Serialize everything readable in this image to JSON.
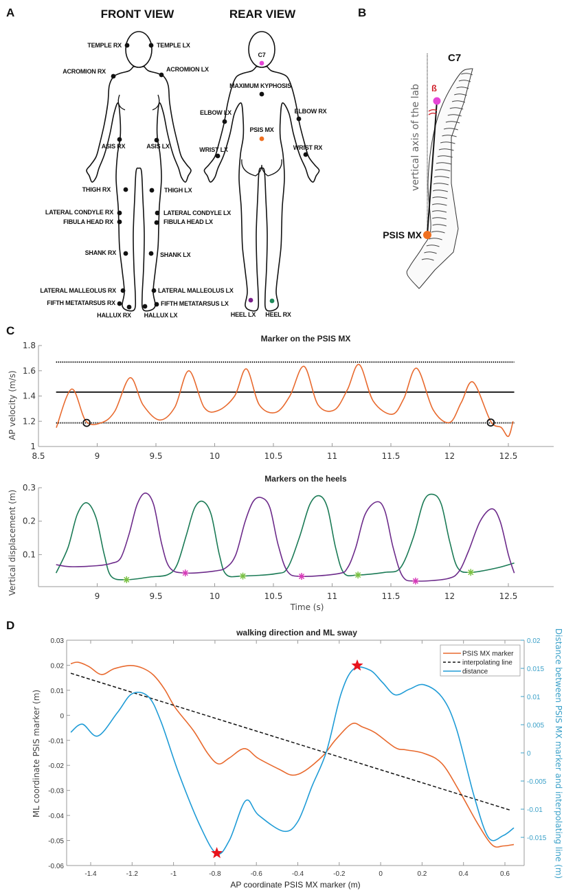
{
  "panel_labels": {
    "a": "A",
    "b": "B",
    "c": "C",
    "d": "D"
  },
  "front_view": {
    "title": "FRONT VIEW",
    "markers": [
      "TEMPLE RX",
      "TEMPLE LX",
      "ACROMION RX",
      "ACROMION LX",
      "ASIS RX",
      "ASIS LX",
      "THIGH RX",
      "THIGH LX",
      "LATERAL CONDYLE RX",
      "LATERAL CONDYLE LX",
      "FIBULA HEAD RX",
      "FIBULA HEAD LX",
      "SHANK RX",
      "SHANK LX",
      "LATERAL MALLEOLUS RX",
      "LATERAL MALLEOLUS LX",
      "FIFTH METATARSUS RX",
      "FIFTH METATARSUS LX",
      "HALLUX RX",
      "HALLUX LX"
    ]
  },
  "rear_view": {
    "title": "REAR VIEW",
    "markers": [
      "C7",
      "MAXIMUM KYPHOSIS",
      "ELBOW LX",
      "ELBOW RX",
      "PSIS MX",
      "WRIST LX",
      "WRIST RX",
      "HEEL LX",
      "HEEL RX"
    ],
    "marker_colors": {
      "C7": "#e646d6",
      "PSIS MX": "#f07020",
      "HEEL LX": "#7a1f8a",
      "HEEL RX": "#1f8a5a",
      "default": "#111111"
    }
  },
  "spine": {
    "top_label": "C7",
    "angle_label": "ß",
    "axis_label": "vertical axis of the lab",
    "bottom_label": "PSIS MX",
    "colors": {
      "c7": "#e646d6",
      "psis": "#f07020",
      "angle": "#d0202a"
    }
  },
  "chart_data": [
    {
      "type": "line",
      "title": "Marker on the PSIS MX",
      "xlabel": "",
      "ylabel": "AP velocity (m/s)",
      "xlim": [
        8.5,
        12.88
      ],
      "ylim": [
        1,
        1.8
      ],
      "xticks": [
        "8.5",
        "9",
        "9.5",
        "10",
        "10.5",
        "11",
        "11.5",
        "12",
        "12.5"
      ],
      "yticks": [
        "1",
        "1.2",
        "1.4",
        "1.6",
        "1.8"
      ],
      "grid": false,
      "series": [
        {
          "color": "#e8692d",
          "points": [
            [
              8.652,
              1.149
            ],
            [
              8.783,
              1.455
            ],
            [
              8.905,
              1.2
            ],
            [
              9.04,
              1.19
            ],
            [
              9.15,
              1.28
            ],
            [
              9.28,
              1.545
            ],
            [
              9.39,
              1.33
            ],
            [
              9.53,
              1.21
            ],
            [
              9.66,
              1.31
            ],
            [
              9.78,
              1.6
            ],
            [
              9.91,
              1.31
            ],
            [
              10.03,
              1.285
            ],
            [
              10.17,
              1.4
            ],
            [
              10.27,
              1.615
            ],
            [
              10.38,
              1.33
            ],
            [
              10.52,
              1.27
            ],
            [
              10.64,
              1.4
            ],
            [
              10.76,
              1.635
            ],
            [
              10.88,
              1.33
            ],
            [
              11.02,
              1.29
            ],
            [
              11.13,
              1.45
            ],
            [
              11.23,
              1.65
            ],
            [
              11.35,
              1.36
            ],
            [
              11.51,
              1.255
            ],
            [
              11.61,
              1.38
            ],
            [
              11.72,
              1.62
            ],
            [
              11.86,
              1.29
            ],
            [
              12.0,
              1.19
            ],
            [
              12.1,
              1.35
            ],
            [
              12.2,
              1.51
            ],
            [
              12.35,
              1.2
            ],
            [
              12.44,
              1.15
            ],
            [
              12.5,
              1.08
            ],
            [
              12.54,
              1.2
            ]
          ]
        }
      ],
      "reference_lines": [
        {
          "y": 1.669,
          "style": "dotted",
          "color": "#111111"
        },
        {
          "y": 1.431,
          "style": "solid",
          "color": "#111111"
        },
        {
          "y": 1.187,
          "style": "dotted",
          "color": "#111111"
        }
      ],
      "reference_x_range": [
        8.65,
        12.55
      ],
      "circle_markers": [
        [
          8.91,
          1.187
        ],
        [
          12.35,
          1.19
        ]
      ]
    },
    {
      "type": "line",
      "title": "Markers on the heels",
      "xlabel": "Time (s)",
      "ylabel": "Vertical displacement (m)",
      "xlim": [
        8.5,
        12.88
      ],
      "ylim": [
        0.006,
        0.3
      ],
      "xticks": [
        "9",
        "9.5",
        "10",
        "10.5",
        "11",
        "11.5",
        "12",
        "12.5"
      ],
      "yticks": [
        "0.1",
        "0.2",
        "0.3"
      ],
      "grid": false,
      "series": [
        {
          "color": "#1a7a55",
          "points": [
            [
              8.65,
              0.045
            ],
            [
              8.75,
              0.12
            ],
            [
              8.83,
              0.22
            ],
            [
              8.91,
              0.255
            ],
            [
              8.99,
              0.21
            ],
            [
              9.06,
              0.1
            ],
            [
              9.12,
              0.035
            ],
            [
              9.25,
              0.025
            ],
            [
              9.45,
              0.033
            ],
            [
              9.6,
              0.04
            ],
            [
              9.68,
              0.07
            ],
            [
              9.76,
              0.16
            ],
            [
              9.83,
              0.24
            ],
            [
              9.9,
              0.259
            ],
            [
              9.97,
              0.22
            ],
            [
              10.04,
              0.1
            ],
            [
              10.1,
              0.04
            ],
            [
              10.24,
              0.036
            ],
            [
              10.52,
              0.043
            ],
            [
              10.62,
              0.06
            ],
            [
              10.72,
              0.15
            ],
            [
              10.81,
              0.25
            ],
            [
              10.89,
              0.276
            ],
            [
              10.96,
              0.24
            ],
            [
              11.03,
              0.12
            ],
            [
              11.1,
              0.045
            ],
            [
              11.22,
              0.039
            ],
            [
              11.45,
              0.047
            ],
            [
              11.58,
              0.06
            ],
            [
              11.69,
              0.15
            ],
            [
              11.78,
              0.26
            ],
            [
              11.86,
              0.28
            ],
            [
              11.93,
              0.25
            ],
            [
              12.0,
              0.14
            ],
            [
              12.07,
              0.06
            ],
            [
              12.18,
              0.047
            ],
            [
              12.4,
              0.06
            ],
            [
              12.55,
              0.075
            ]
          ]
        },
        {
          "color": "#6c2a8a",
          "points": [
            [
              8.65,
              0.07
            ],
            [
              8.77,
              0.064
            ],
            [
              9.0,
              0.067
            ],
            [
              9.12,
              0.074
            ],
            [
              9.2,
              0.09
            ],
            [
              9.27,
              0.16
            ],
            [
              9.34,
              0.25
            ],
            [
              9.41,
              0.284
            ],
            [
              9.48,
              0.25
            ],
            [
              9.55,
              0.13
            ],
            [
              9.62,
              0.06
            ],
            [
              9.75,
              0.045
            ],
            [
              10.0,
              0.051
            ],
            [
              10.1,
              0.062
            ],
            [
              10.18,
              0.1
            ],
            [
              10.26,
              0.2
            ],
            [
              10.33,
              0.26
            ],
            [
              10.4,
              0.27
            ],
            [
              10.47,
              0.24
            ],
            [
              10.54,
              0.13
            ],
            [
              10.62,
              0.05
            ],
            [
              10.74,
              0.035
            ],
            [
              11.05,
              0.043
            ],
            [
              11.13,
              0.06
            ],
            [
              11.2,
              0.12
            ],
            [
              11.28,
              0.22
            ],
            [
              11.38,
              0.258
            ],
            [
              11.45,
              0.23
            ],
            [
              11.52,
              0.12
            ],
            [
              11.6,
              0.035
            ],
            [
              11.71,
              0.021
            ],
            [
              11.98,
              0.028
            ],
            [
              12.08,
              0.05
            ],
            [
              12.16,
              0.11
            ],
            [
              12.26,
              0.2
            ],
            [
              12.36,
              0.237
            ],
            [
              12.43,
              0.2
            ],
            [
              12.5,
              0.1
            ],
            [
              12.55,
              0.045
            ]
          ]
        }
      ],
      "asterisk_markers": [
        {
          "color": "#7ac143",
          "points": [
            [
              9.25,
              0.025
            ],
            [
              10.24,
              0.036
            ],
            [
              11.22,
              0.039
            ],
            [
              12.18,
              0.047
            ]
          ]
        },
        {
          "color": "#d63ab8",
          "points": [
            [
              9.75,
              0.045
            ],
            [
              10.74,
              0.035
            ],
            [
              11.71,
              0.021
            ]
          ]
        }
      ]
    },
    {
      "type": "line",
      "title": "walking direction and ML sway",
      "xlabel": "AP coordinate PSIS MX marker (m)",
      "ylabel": "ML coordinate PSIS marker (m)",
      "y2label": "Distance between PSIS MX marker and interpolating line (m)",
      "xlim": [
        -1.52,
        0.69
      ],
      "ylim": [
        -0.06,
        0.03
      ],
      "y2lim": [
        -0.02,
        0.02
      ],
      "xticks": [
        "-1.4",
        "-1.2",
        "-1",
        "-0.8",
        "-0.6",
        "-0.4",
        "-0.2",
        "0",
        "0.2",
        "0.4",
        "0.6"
      ],
      "yticks": [
        "-0.06",
        "-0.05",
        "-0.04",
        "-0.03",
        "-0.02",
        "-0.01",
        "0",
        "0.01",
        "0.02",
        "0.03"
      ],
      "y2ticks": [
        "-0.015",
        "-0.01",
        "-0.005",
        "0",
        "0.005",
        "0.01",
        "0.015",
        "0.02"
      ],
      "y2color": "#3aa0c8",
      "grid": false,
      "legend_position": "top-right",
      "series": [
        {
          "name": "PSIS MX marker",
          "axis": "left",
          "style": "solid",
          "color": "#e8692d",
          "points": [
            [
              -1.496,
              0.0206
            ],
            [
              -1.461,
              0.0212
            ],
            [
              -1.409,
              0.0195
            ],
            [
              -1.348,
              0.0163
            ],
            [
              -1.287,
              0.0186
            ],
            [
              -1.209,
              0.0199
            ],
            [
              -1.148,
              0.0188
            ],
            [
              -1.096,
              0.016
            ],
            [
              -1.043,
              0.0104
            ],
            [
              -0.991,
              0.003
            ],
            [
              -0.904,
              -0.0061
            ],
            [
              -0.835,
              -0.0152
            ],
            [
              -0.783,
              -0.0194
            ],
            [
              -0.73,
              -0.017
            ],
            [
              -0.657,
              -0.0133
            ],
            [
              -0.591,
              -0.0172
            ],
            [
              -0.487,
              -0.0217
            ],
            [
              -0.426,
              -0.0239
            ],
            [
              -0.365,
              -0.0221
            ],
            [
              -0.278,
              -0.0161
            ],
            [
              -0.217,
              -0.0097
            ],
            [
              -0.139,
              -0.0034
            ],
            [
              -0.087,
              -0.0047
            ],
            [
              -0.026,
              -0.007
            ],
            [
              0.07,
              -0.0129
            ],
            [
              0.122,
              -0.0138
            ],
            [
              0.209,
              -0.0152
            ],
            [
              0.296,
              -0.0193
            ],
            [
              0.383,
              -0.0307
            ],
            [
              0.47,
              -0.0435
            ],
            [
              0.54,
              -0.0519
            ],
            [
              0.592,
              -0.0522
            ],
            [
              0.643,
              -0.0516
            ]
          ]
        },
        {
          "name": "interpolating line",
          "axis": "left",
          "style": "dashed",
          "color": "#111111",
          "points": [
            [
              -1.496,
              0.0168
            ],
            [
              0.626,
              -0.0379
            ]
          ]
        },
        {
          "name": "distance",
          "axis": "right",
          "style": "solid",
          "color": "#1e9bd6",
          "points": [
            [
              -1.496,
              0.00365
            ],
            [
              -1.44,
              0.0051
            ],
            [
              -1.365,
              0.003
            ],
            [
              -1.27,
              0.0072
            ],
            [
              -1.2,
              0.0105
            ],
            [
              -1.122,
              0.01
            ],
            [
              -1.061,
              0.0056
            ],
            [
              -0.974,
              -0.0037
            ],
            [
              -0.87,
              -0.0131
            ],
            [
              -0.791,
              -0.0179
            ],
            [
              -0.73,
              -0.0155
            ],
            [
              -0.652,
              -0.0085
            ],
            [
              -0.591,
              -0.011
            ],
            [
              -0.47,
              -0.0139
            ],
            [
              -0.4,
              -0.0122
            ],
            [
              -0.33,
              -0.0058
            ],
            [
              -0.261,
              0.0003
            ],
            [
              -0.191,
              0.0105
            ],
            [
              -0.13,
              0.0149
            ],
            [
              -0.052,
              0.0147
            ],
            [
              0.009,
              0.0125
            ],
            [
              0.07,
              0.0103
            ],
            [
              0.139,
              0.0113
            ],
            [
              0.209,
              0.0121
            ],
            [
              0.296,
              0.0099
            ],
            [
              0.365,
              0.0044
            ],
            [
              0.452,
              -0.0078
            ],
            [
              0.522,
              -0.0151
            ],
            [
              0.591,
              -0.0147
            ],
            [
              0.643,
              -0.0133
            ]
          ]
        }
      ],
      "star_markers": {
        "axis": "right",
        "color": "#e8141c",
        "points": [
          [
            -0.791,
            -0.0178
          ],
          [
            -0.113,
            0.0155
          ]
        ]
      }
    }
  ]
}
